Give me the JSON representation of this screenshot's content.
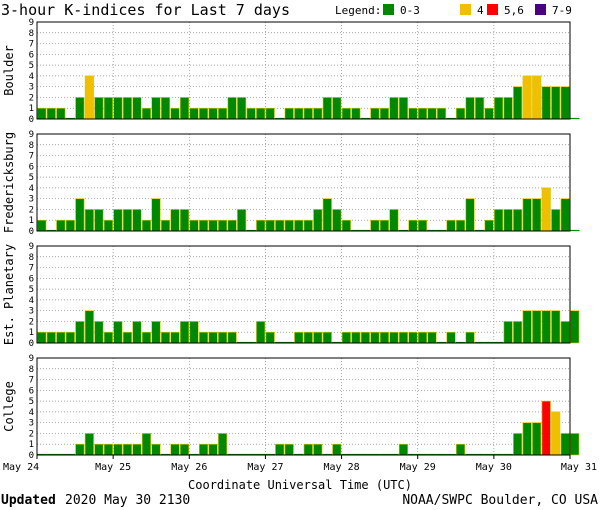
{
  "chart_data": {
    "type": "bar",
    "title": "3-hour K-indices for Last 7 days",
    "legend": {
      "label": "Legend:",
      "placement": "top-right",
      "entries": [
        {
          "label": "0-3",
          "color": "#008800"
        },
        {
          "label": "4",
          "color": "#f0c000"
        },
        {
          "label": "5,6",
          "color": "#ff0000"
        },
        {
          "label": "7-9",
          "color": "#4b0082"
        }
      ]
    },
    "xlabel": "Coordinate Universal Time (UTC)",
    "x_ticks": [
      "May 24",
      "May 25",
      "May 26",
      "May 27",
      "May 28",
      "May 29",
      "May 30",
      "May 31"
    ],
    "ylim": [
      0,
      9
    ],
    "y_ticks": [
      "0",
      "1",
      "2",
      "3",
      "4",
      "5",
      "6",
      "7",
      "8",
      "9"
    ],
    "grid": "dotted horizontal",
    "intervals_per_day": 8,
    "series": [
      {
        "name": "Boulder",
        "values": [
          1,
          1,
          1,
          0,
          2,
          4,
          2,
          2,
          2,
          2,
          2,
          1,
          2,
          2,
          1,
          2,
          1,
          1,
          1,
          1,
          2,
          2,
          1,
          1,
          1,
          0,
          1,
          1,
          1,
          1,
          2,
          2,
          1,
          1,
          0,
          1,
          1,
          2,
          2,
          1,
          1,
          1,
          1,
          0,
          1,
          2,
          2,
          1,
          2,
          2,
          3,
          4,
          4,
          3,
          3,
          3,
          0
        ]
      },
      {
        "name": "Fredericksburg",
        "values": [
          1,
          0,
          1,
          1,
          3,
          2,
          2,
          1,
          2,
          2,
          2,
          1,
          3,
          1,
          2,
          2,
          1,
          1,
          1,
          1,
          1,
          2,
          0,
          1,
          1,
          1,
          1,
          1,
          1,
          2,
          3,
          2,
          1,
          0,
          0,
          1,
          1,
          2,
          0,
          1,
          1,
          0,
          0,
          1,
          1,
          3,
          0,
          1,
          2,
          2,
          2,
          3,
          3,
          4,
          2,
          3,
          0
        ]
      },
      {
        "name": "Est. Planetary",
        "values": [
          1,
          1,
          1,
          1,
          2,
          3,
          2,
          1,
          2,
          1,
          2,
          1,
          2,
          1,
          1,
          2,
          2,
          1,
          1,
          1,
          1,
          0,
          0,
          2,
          1,
          0,
          0,
          1,
          1,
          1,
          1,
          0,
          1,
          1,
          1,
          1,
          1,
          1,
          1,
          1,
          1,
          1,
          0,
          1,
          0,
          1,
          0,
          0,
          0,
          2,
          2,
          3,
          3,
          3,
          3,
          2,
          3
        ]
      },
      {
        "name": "College",
        "values": [
          0,
          0,
          0,
          0,
          1,
          2,
          1,
          1,
          1,
          1,
          1,
          2,
          1,
          0,
          1,
          1,
          0,
          1,
          1,
          2,
          0,
          0,
          0,
          0,
          0,
          1,
          1,
          0,
          1,
          1,
          0,
          1,
          0,
          0,
          0,
          0,
          0,
          0,
          1,
          0,
          0,
          0,
          0,
          0,
          1,
          0,
          0,
          0,
          0,
          0,
          2,
          3,
          3,
          5,
          4,
          2,
          2
        ]
      }
    ]
  },
  "footer": {
    "updated_label": "Updated",
    "updated_value": "2020 May 30 2130",
    "source": "NOAA/SWPC Boulder, CO USA"
  }
}
